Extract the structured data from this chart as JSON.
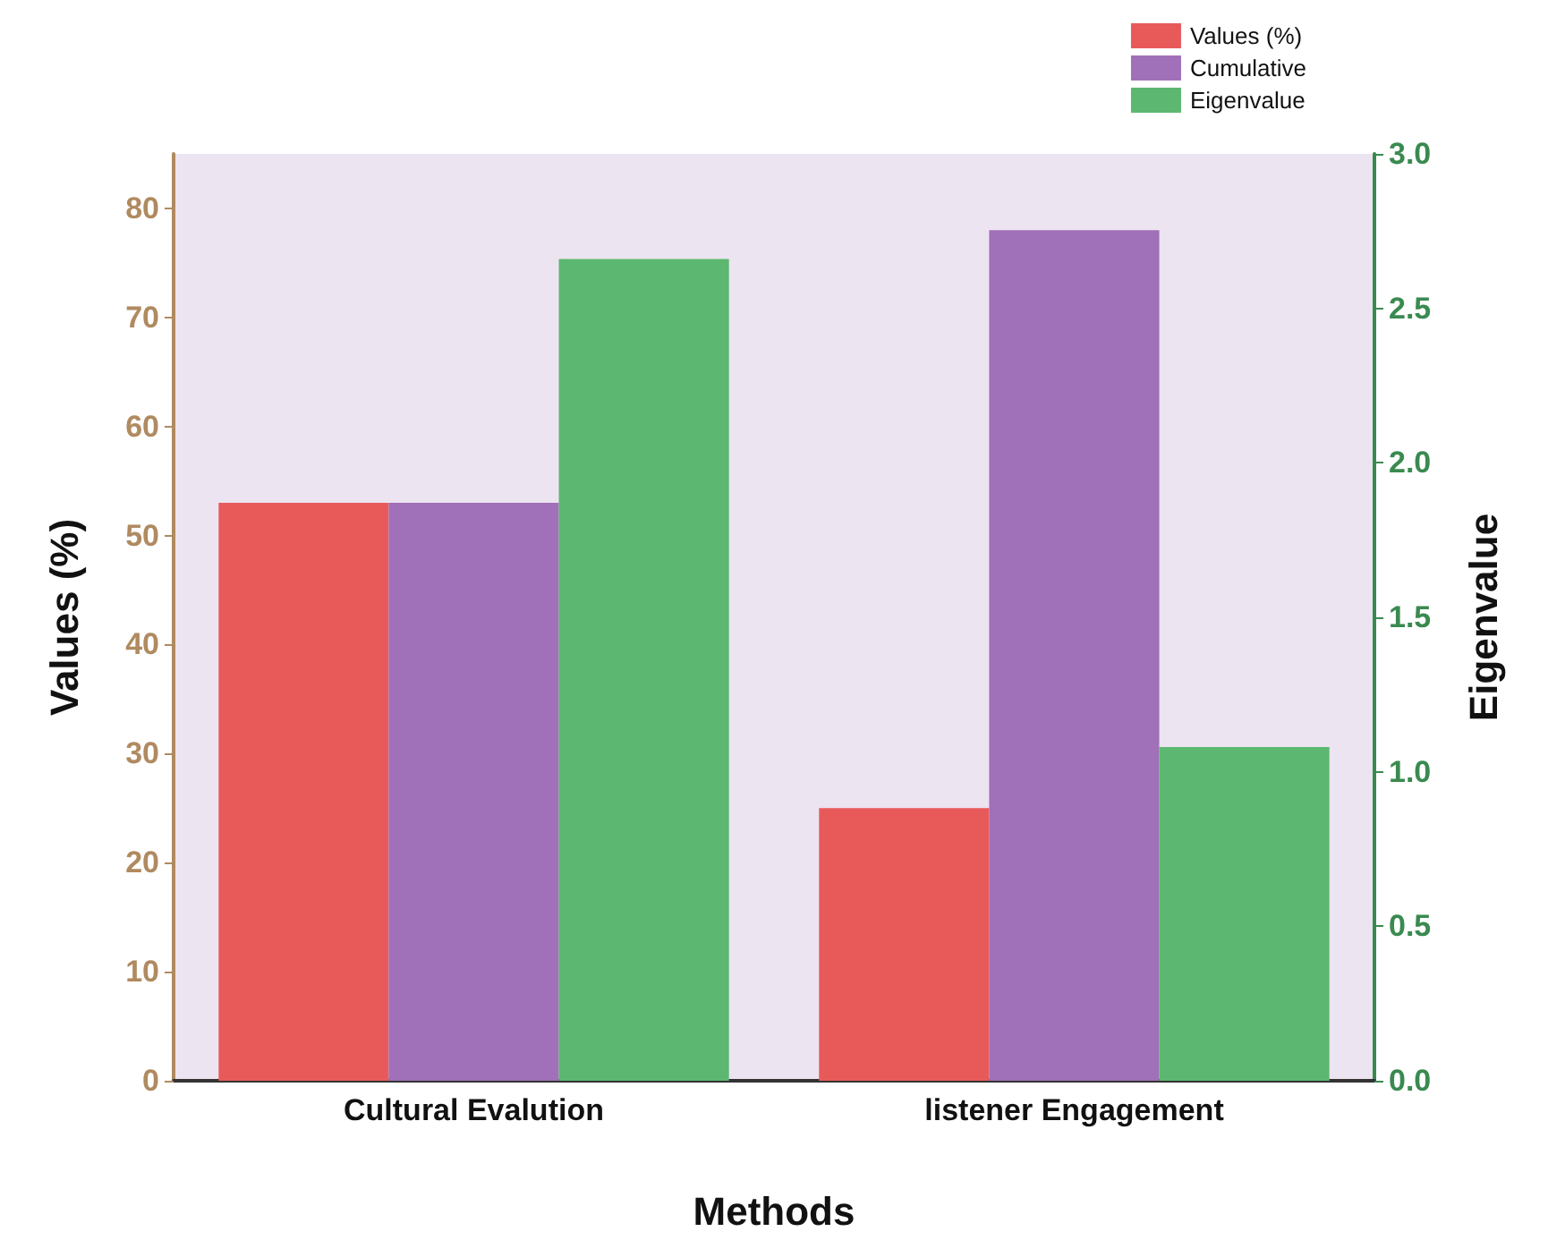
{
  "chart_data": {
    "type": "bar",
    "xlabel": "Methods",
    "ylabel": "Values (%)",
    "y2label": "Eigenvalue",
    "categories": [
      "Cultural Evalution",
      "listener Engagement"
    ],
    "series": [
      {
        "name": "Values (%)",
        "color": "#e85a5a",
        "values": [
          53,
          25
        ]
      },
      {
        "name": "Cumulative",
        "color": "#a070b8",
        "values": [
          53,
          78
        ]
      },
      {
        "name": "Eigenvalue",
        "color": "#5cb870",
        "values": [
          2.66,
          1.08
        ],
        "axis": "y2"
      }
    ],
    "ylim": [
      0,
      85
    ],
    "yticks": [
      0,
      10,
      20,
      30,
      40,
      50,
      60,
      70,
      80
    ],
    "y2lim": [
      0,
      3
    ],
    "y2ticks": [
      {
        "value": 0,
        "label": "0.0"
      },
      0.5,
      {
        "value": 1,
        "label": "1.0"
      },
      1.5,
      {
        "value": 2,
        "label": "2.0"
      },
      2.5,
      {
        "value": 3,
        "label": "3.0"
      }
    ],
    "legend": "top right",
    "grid": false
  }
}
